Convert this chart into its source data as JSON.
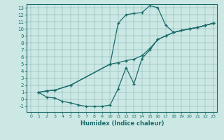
{
  "xlabel": "Humidex (Indice chaleur)",
  "bg_color": "#cce8e4",
  "line_color": "#1a6b6b",
  "xlim": [
    -0.5,
    23.5
  ],
  "ylim": [
    -1.8,
    13.5
  ],
  "xticks": [
    0,
    1,
    2,
    3,
    4,
    5,
    6,
    7,
    8,
    9,
    10,
    11,
    12,
    13,
    14,
    15,
    16,
    17,
    18,
    19,
    20,
    21,
    22,
    23
  ],
  "yticks": [
    -1,
    0,
    1,
    2,
    3,
    4,
    5,
    6,
    7,
    8,
    9,
    10,
    11,
    12,
    13
  ],
  "curve1_x": [
    1,
    2,
    3,
    4,
    5,
    6,
    7,
    8,
    9,
    10,
    11,
    12,
    13,
    14,
    15,
    16,
    17,
    18,
    19,
    20,
    21,
    22,
    23
  ],
  "curve1_y": [
    1.0,
    0.3,
    0.2,
    -0.3,
    -0.5,
    -0.8,
    -1.0,
    -1.0,
    -1.0,
    -0.8,
    1.5,
    4.5,
    2.2,
    5.8,
    7.0,
    8.5,
    9.0,
    9.5,
    9.8,
    10.0,
    10.2,
    10.5,
    10.8
  ],
  "curve2_x": [
    1,
    2,
    3,
    5,
    10,
    11,
    12,
    13,
    14,
    15,
    16,
    17,
    18,
    20,
    21,
    22,
    23
  ],
  "curve2_y": [
    1.0,
    1.2,
    1.3,
    2.0,
    5.0,
    10.8,
    12.0,
    12.2,
    12.3,
    13.3,
    13.0,
    10.5,
    9.5,
    10.0,
    10.2,
    10.5,
    10.8
  ],
  "curve3_x": [
    1,
    2,
    3,
    5,
    10,
    11,
    12,
    13,
    14,
    15,
    16,
    17,
    18,
    20,
    21,
    22,
    23
  ],
  "curve3_y": [
    1.0,
    1.2,
    1.3,
    2.0,
    5.0,
    5.2,
    5.5,
    5.7,
    6.2,
    7.2,
    8.5,
    9.0,
    9.5,
    10.0,
    10.2,
    10.5,
    10.8
  ]
}
